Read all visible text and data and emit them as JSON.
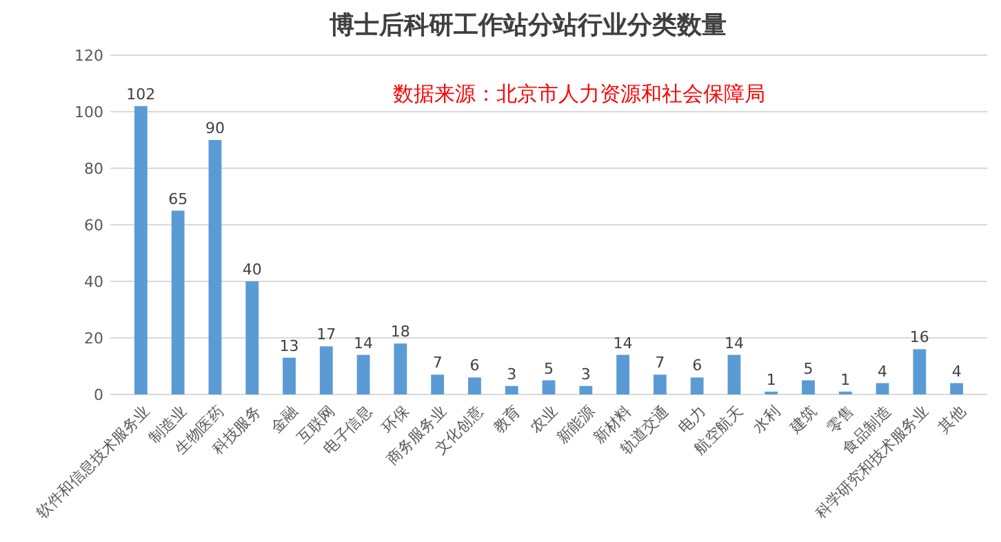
{
  "chart_data": {
    "type": "bar",
    "title": "博士后科研工作站分站行业分类数量",
    "categories": [
      "软件和信息技术服务业",
      "制造业",
      "生物医药",
      "科技服务",
      "金融",
      "互联网",
      "电子信息",
      "环保",
      "商务服务业",
      "文化创意",
      "教育",
      "农业",
      "新能源",
      "新材料",
      "轨道交通",
      "电力",
      "航空航天",
      "水利",
      "建筑",
      "零售",
      "食品制造",
      "科学研究和技术服务业",
      "其他"
    ],
    "values": [
      102,
      65,
      90,
      40,
      13,
      17,
      14,
      18,
      7,
      6,
      3,
      5,
      3,
      14,
      7,
      6,
      14,
      1,
      5,
      1,
      4,
      16,
      4
    ],
    "color": "#5b9bd5",
    "ylim": [
      0,
      120
    ],
    "yticks": [
      0,
      20,
      40,
      60,
      80,
      100,
      120
    ],
    "grid": "y",
    "data_labels": true,
    "annotations": [
      "数据来源：北京市人力资源和社会保障局"
    ]
  }
}
